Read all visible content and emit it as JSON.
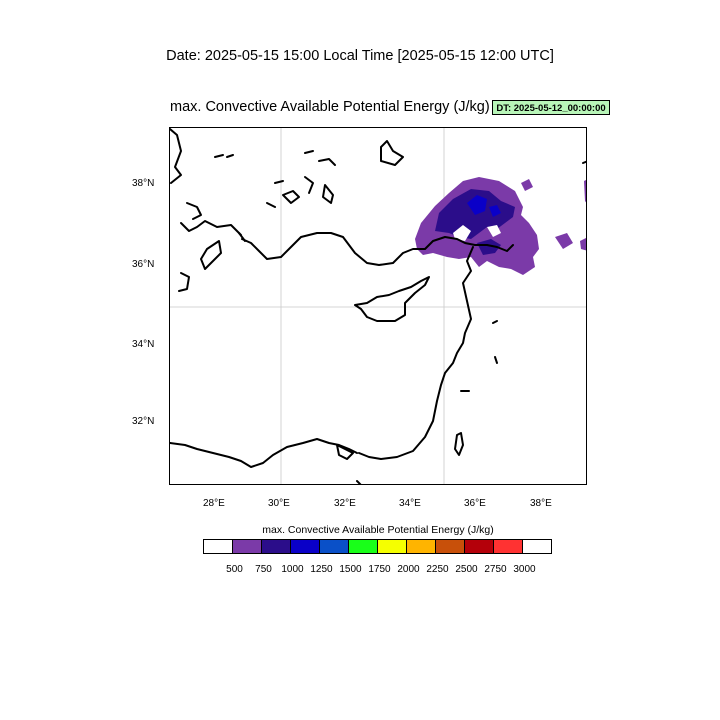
{
  "header": {
    "date_line": "Date: 2025-05-15  15:00 Local Time [2025-05-15  12:00 UTC]",
    "map_title": "max. Convective Available Potential Energy   (J/kg)",
    "dt_badge": "DT: 2025-05-12_00:00:00"
  },
  "map": {
    "lon_range": [
      26.6,
      39.4
    ],
    "lat_range": [
      30.4,
      39.4
    ],
    "lon_ticks": [
      "28°E",
      "30°E",
      "32°E",
      "34°E",
      "36°E",
      "38°E"
    ],
    "lat_ticks": [
      "38°N",
      "36°N",
      "34°N",
      "32°N"
    ],
    "grid_lon": [
      30,
      35
    ],
    "grid_lat": [
      35
    ],
    "field_colors": {
      "lvl500": "#7b3aa8",
      "lvl750": "#2b0d8a",
      "lvl1000": "#0a00c8"
    }
  },
  "colorbar": {
    "title": "max. Convective Available Potential Energy  (J/kg)",
    "labels": [
      "500",
      "750",
      "1000",
      "1250",
      "1500",
      "1750",
      "2000",
      "2250",
      "2500",
      "2750",
      "3000"
    ],
    "colors": [
      "#ffffff",
      "#7b3aa8",
      "#2b0d8a",
      "#0a00c8",
      "#0a50c8",
      "#19ff19",
      "#f5ff00",
      "#ffb400",
      "#c8500a",
      "#b4000a",
      "#ff3232",
      "#ffffff"
    ]
  }
}
